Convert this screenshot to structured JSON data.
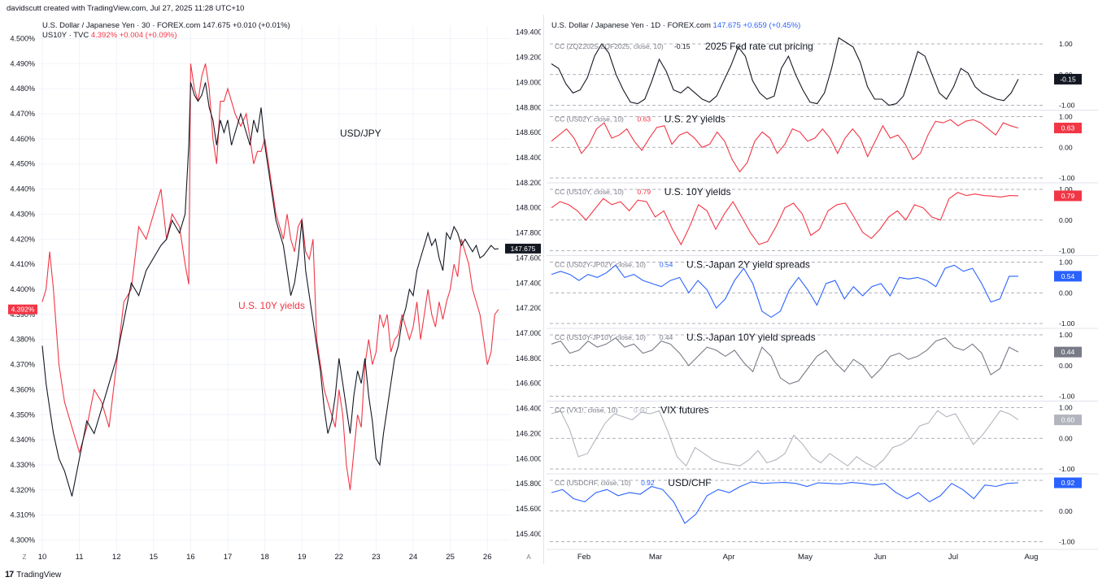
{
  "header": {
    "credit": "davidscutt created with TradingView.com, Jul 27, 2025 11:28 UTC+10"
  },
  "footer": {
    "logo": "17",
    "brand": "TradingView"
  },
  "colors": {
    "red": "#f23645",
    "black": "#131722",
    "blue": "#2962ff",
    "gray": "#787b86",
    "light_gray": "#b2b5be"
  },
  "left": {
    "legend1": {
      "name": "U.S. Dollar / Japanese Yen · 30 · FOREX.com",
      "price": "147.675",
      "change": "+0.010 (+0.01%)"
    },
    "legend2": {
      "name": "US10Y · TVC",
      "value": "4.392%",
      "change": "+0.004 (+0.09%)"
    },
    "annotation_usdjpy": "USD/JPY",
    "annotation_us10y": "U.S. 10Y yields",
    "label_left_marker": "4.392%",
    "label_right_marker": "147.675",
    "axis_corner_left": "Z",
    "axis_corner_right": "A"
  },
  "right": {
    "legend": {
      "name": "U.S. Dollar / Japanese Yen · 1D · FOREX.com",
      "price": "147.675",
      "change": "+0.659 (+0.45%)"
    },
    "month_labels": [
      "Feb",
      "Mar",
      "Apr",
      "May",
      "Jun",
      "Jul",
      "Aug"
    ],
    "pane_ticks": [
      "1.00",
      "0.00",
      "-1.00"
    ],
    "pane_tick_values": [
      1,
      0,
      -1
    ],
    "panes": [
      {
        "legend": "CC (ZQZ2025-ZQF2025, close, 10)",
        "legend_value": "-0.15",
        "title": "2025 Fed rate cut pricing",
        "badge": "-0.15",
        "color": "#131722",
        "values": [
          0.35,
          0.2,
          -0.3,
          -0.6,
          -0.5,
          -0.1,
          0.6,
          1.0,
          0.7,
          0.0,
          -0.5,
          -0.9,
          -0.95,
          -0.8,
          -0.2,
          0.5,
          0.1,
          -0.5,
          -0.6,
          -0.4,
          -0.6,
          -0.8,
          -0.9,
          -0.7,
          -0.2,
          0.3,
          0.9,
          0.6,
          -0.2,
          -0.6,
          -0.8,
          -0.7,
          0.2,
          0.6,
          0.0,
          -0.5,
          -0.9,
          -0.95,
          -0.6,
          0.2,
          1.2,
          1.05,
          0.9,
          0.4,
          -0.4,
          -0.8,
          -0.8,
          -1.0,
          -0.95,
          -0.7,
          0.0,
          0.75,
          0.6,
          0.0,
          -0.6,
          -0.8,
          -0.4,
          0.2,
          0.05,
          -0.4,
          -0.6,
          -0.7,
          -0.8,
          -0.85,
          -0.6,
          -0.15
        ]
      },
      {
        "legend": "CC (US02Y, close, 10)",
        "legend_value": "0.63",
        "title": "U.S. 2Y yields",
        "badge": "0.63",
        "color": "#f23645",
        "values": [
          0.2,
          0.4,
          0.6,
          0.3,
          -0.2,
          0.1,
          0.6,
          0.8,
          0.3,
          0.4,
          0.6,
          0.2,
          -0.1,
          0.3,
          0.65,
          0.7,
          0.1,
          0.4,
          0.5,
          0.3,
          0.0,
          0.1,
          0.5,
          0.2,
          -0.4,
          -0.8,
          -0.5,
          0.2,
          0.5,
          0.3,
          -0.2,
          0.1,
          0.6,
          0.5,
          0.2,
          0.3,
          0.6,
          0.3,
          -0.2,
          0.3,
          0.6,
          0.3,
          -0.3,
          0.2,
          0.7,
          0.3,
          0.4,
          0.1,
          -0.4,
          -0.2,
          0.4,
          0.85,
          0.8,
          0.9,
          0.7,
          0.85,
          0.9,
          0.8,
          0.6,
          0.4,
          0.8,
          0.7,
          0.63
        ]
      },
      {
        "legend": "CC (US10Y, close, 10)",
        "legend_value": "0.79",
        "title": "U.S. 10Y yields",
        "badge": "0.79",
        "color": "#f23645",
        "values": [
          0.4,
          0.6,
          0.5,
          0.3,
          0.0,
          0.35,
          0.7,
          0.5,
          0.6,
          0.3,
          0.65,
          0.6,
          0.1,
          0.3,
          -0.3,
          -0.8,
          -0.2,
          0.5,
          0.3,
          -0.3,
          0.2,
          0.6,
          0.1,
          -0.4,
          -0.8,
          -0.7,
          -0.2,
          0.4,
          0.55,
          0.2,
          -0.5,
          -0.3,
          0.3,
          0.5,
          0.55,
          0.1,
          -0.4,
          -0.6,
          -0.3,
          0.1,
          0.3,
          0.0,
          0.5,
          0.4,
          0.1,
          0.0,
          0.7,
          0.9,
          0.8,
          0.85,
          0.8,
          0.78,
          0.75,
          0.8,
          0.79
        ]
      },
      {
        "legend": "CC (US02Y-JP02Y, close, 10)",
        "legend_value": "0.54",
        "title": "U.S.-Japan 2Y yield spreads",
        "badge": "0.54",
        "color": "#2962ff",
        "values": [
          0.6,
          0.7,
          0.6,
          0.4,
          0.6,
          0.5,
          0.65,
          0.9,
          0.5,
          0.6,
          0.4,
          0.3,
          0.2,
          0.4,
          0.5,
          0.0,
          0.4,
          0.1,
          -0.5,
          -0.2,
          0.4,
          0.8,
          0.3,
          -0.6,
          -0.8,
          -0.6,
          0.1,
          0.5,
          0.1,
          -0.4,
          0.3,
          0.4,
          -0.2,
          0.2,
          -0.1,
          0.2,
          0.3,
          -0.1,
          0.5,
          0.45,
          0.5,
          0.4,
          0.2,
          0.8,
          0.9,
          0.7,
          0.8,
          0.3,
          -0.3,
          -0.2,
          0.54,
          0.54
        ]
      },
      {
        "legend": "CC (US10Y-JP10Y, close, 10)",
        "legend_value": "0.44",
        "title": "U.S.-Japan 10Y yield spreads",
        "badge": "0.44",
        "color": "#787b86",
        "values": [
          0.7,
          0.8,
          0.4,
          0.5,
          0.8,
          0.6,
          0.7,
          0.9,
          0.6,
          0.7,
          0.4,
          0.5,
          0.8,
          0.7,
          0.4,
          0.0,
          0.3,
          0.6,
          0.5,
          0.3,
          0.5,
          0.1,
          -0.2,
          0.6,
          0.3,
          -0.4,
          -0.6,
          -0.5,
          -0.1,
          0.3,
          0.5,
          0.1,
          -0.2,
          0.2,
          0.0,
          -0.4,
          -0.1,
          0.3,
          0.4,
          0.2,
          0.3,
          0.5,
          0.8,
          0.9,
          0.6,
          0.5,
          0.7,
          0.4,
          -0.3,
          -0.1,
          0.6,
          0.44
        ]
      },
      {
        "legend": "CC (VX1!, close, 10)",
        "legend_value": "0.60",
        "title": "VIX futures",
        "badge": "0.60",
        "color": "#b2b5be",
        "values": [
          0.8,
          0.9,
          0.3,
          -0.6,
          -0.5,
          0.0,
          0.5,
          0.8,
          0.7,
          0.6,
          0.85,
          0.8,
          0.9,
          0.2,
          -0.6,
          -0.9,
          -0.3,
          -0.5,
          -0.7,
          -0.8,
          -0.85,
          -0.9,
          -0.7,
          -0.4,
          -0.8,
          -0.7,
          -0.5,
          0.1,
          -0.2,
          -0.6,
          -0.8,
          -0.5,
          -0.7,
          -0.9,
          -0.6,
          -0.8,
          -0.95,
          -0.7,
          -0.3,
          -0.2,
          0.0,
          0.4,
          0.5,
          0.9,
          0.7,
          0.8,
          0.3,
          -0.2,
          0.1,
          0.5,
          0.9,
          0.8,
          0.6
        ]
      },
      {
        "legend": "CC (USDCHF, close, 10)",
        "legend_value": "0.92",
        "title": "USD/CHF",
        "badge": "0.92",
        "color": "#2962ff",
        "values": [
          0.6,
          0.7,
          0.4,
          0.3,
          0.6,
          0.7,
          0.5,
          0.6,
          0.55,
          0.8,
          0.7,
          0.3,
          -0.4,
          -0.1,
          0.5,
          0.7,
          0.6,
          0.8,
          0.95,
          0.9,
          0.92,
          0.93,
          0.9,
          0.8,
          0.92,
          0.9,
          0.88,
          0.93,
          0.9,
          0.85,
          0.9,
          0.6,
          0.4,
          0.6,
          0.3,
          0.5,
          0.9,
          0.7,
          0.4,
          0.85,
          0.8,
          0.9,
          0.92
        ]
      }
    ]
  },
  "chart_data": [
    {
      "type": "line",
      "title": "",
      "x_tick_labels": [
        "10",
        "11",
        "12",
        "15",
        "16",
        "17",
        "18",
        "19",
        "22",
        "23",
        "24",
        "25",
        "26"
      ],
      "left_axis": {
        "label": "",
        "ylim": [
          4.295,
          4.505
        ],
        "ticks": [
          "4.500%",
          "4.490%",
          "4.480%",
          "4.470%",
          "4.460%",
          "4.450%",
          "4.440%",
          "4.430%",
          "4.420%",
          "4.410%",
          "4.400%",
          "4.390%",
          "4.380%",
          "4.370%",
          "4.360%",
          "4.350%",
          "4.340%",
          "4.330%",
          "4.320%",
          "4.310%",
          "4.300%"
        ]
      },
      "right_axis": {
        "label": "",
        "ylim": [
          145.25,
          149.45
        ],
        "ticks": [
          "149.400",
          "149.200",
          "149.000",
          "148.800",
          "148.600",
          "148.400",
          "148.200",
          "148.000",
          "147.800",
          "147.600",
          "147.400",
          "147.200",
          "147.000",
          "146.800",
          "146.600",
          "146.400",
          "146.200",
          "146.000",
          "145.800",
          "145.600",
          "145.400"
        ]
      },
      "series": [
        {
          "name": "US10Y",
          "axis": "left",
          "color": "#f23645",
          "x": [
            0,
            0.1,
            0.2,
            0.3,
            0.45,
            0.6,
            0.8,
            1.0,
            1.2,
            1.4,
            1.6,
            1.8,
            2.0,
            2.2,
            2.4,
            2.6,
            2.8,
            3.0,
            3.2,
            3.35,
            3.5,
            3.7,
            3.85,
            3.95,
            4.0,
            4.1,
            4.2,
            4.3,
            4.4,
            4.5,
            4.6,
            4.7,
            4.8,
            4.9,
            5.0,
            5.1,
            5.2,
            5.35,
            5.5,
            5.6,
            5.7,
            5.8,
            5.9,
            6.0,
            6.1,
            6.2,
            6.3,
            6.4,
            6.5,
            6.6,
            6.7,
            6.8,
            6.9,
            7.0,
            7.1,
            7.2,
            7.3,
            7.4,
            7.5,
            7.6,
            7.7,
            7.8,
            7.9,
            8.0,
            8.1,
            8.2,
            8.3,
            8.4,
            8.5,
            8.6,
            8.7,
            8.8,
            8.9,
            9.0,
            9.1,
            9.2,
            9.3,
            9.4,
            9.5,
            9.6,
            9.7,
            9.8,
            9.9,
            10.0,
            10.1,
            10.2,
            10.3,
            10.4,
            10.5,
            10.6,
            10.7,
            10.8,
            10.9,
            11.0,
            11.1,
            11.2,
            11.3,
            11.4,
            11.5,
            11.6,
            11.7,
            11.8,
            11.9,
            12.0,
            12.1,
            12.2,
            12.3
          ],
          "y": [
            4.395,
            4.4,
            4.415,
            4.4,
            4.37,
            4.355,
            4.345,
            4.335,
            4.345,
            4.36,
            4.355,
            4.345,
            4.37,
            4.395,
            4.4,
            4.425,
            4.42,
            4.43,
            4.44,
            4.42,
            4.43,
            4.425,
            4.41,
            4.402,
            4.49,
            4.48,
            4.475,
            4.485,
            4.49,
            4.48,
            4.46,
            4.45,
            4.475,
            4.475,
            4.48,
            4.475,
            4.47,
            4.465,
            4.47,
            4.46,
            4.45,
            4.455,
            4.455,
            4.46,
            4.45,
            4.44,
            4.43,
            4.425,
            4.42,
            4.43,
            4.42,
            4.415,
            4.425,
            4.428,
            4.415,
            4.412,
            4.42,
            4.38,
            4.37,
            4.36,
            4.355,
            4.35,
            4.345,
            4.36,
            4.35,
            4.33,
            4.32,
            4.335,
            4.35,
            4.345,
            4.37,
            4.38,
            4.37,
            4.375,
            4.39,
            4.385,
            4.39,
            4.375,
            4.38,
            4.382,
            4.39,
            4.385,
            4.38,
            4.385,
            4.395,
            4.38,
            4.39,
            4.4,
            4.39,
            4.385,
            4.395,
            4.388,
            4.395,
            4.4,
            4.41,
            4.405,
            4.42,
            4.415,
            4.41,
            4.4,
            4.395,
            4.39,
            4.38,
            4.37,
            4.375,
            4.39,
            4.392
          ]
        },
        {
          "name": "USD/JPY",
          "axis": "right",
          "color": "#131722",
          "x": [
            0,
            0.1,
            0.2,
            0.3,
            0.45,
            0.6,
            0.8,
            1.0,
            1.2,
            1.4,
            1.6,
            1.8,
            2.0,
            2.2,
            2.4,
            2.6,
            2.8,
            3.0,
            3.2,
            3.35,
            3.5,
            3.7,
            3.85,
            3.95,
            4.0,
            4.1,
            4.2,
            4.3,
            4.4,
            4.5,
            4.6,
            4.7,
            4.8,
            4.9,
            5.0,
            5.1,
            5.2,
            5.35,
            5.5,
            5.6,
            5.7,
            5.8,
            5.9,
            6.0,
            6.1,
            6.2,
            6.3,
            6.4,
            6.5,
            6.6,
            6.7,
            6.8,
            6.9,
            7.0,
            7.1,
            7.2,
            7.3,
            7.4,
            7.5,
            7.6,
            7.7,
            7.8,
            7.9,
            8.0,
            8.1,
            8.2,
            8.3,
            8.4,
            8.5,
            8.6,
            8.7,
            8.8,
            8.9,
            9.0,
            9.1,
            9.2,
            9.3,
            9.4,
            9.5,
            9.6,
            9.7,
            9.8,
            9.9,
            10.0,
            10.1,
            10.2,
            10.3,
            10.4,
            10.5,
            10.6,
            10.7,
            10.8,
            10.9,
            11.0,
            11.1,
            11.2,
            11.3,
            11.4,
            11.5,
            11.6,
            11.7,
            11.8,
            11.9,
            12.0,
            12.1,
            12.2,
            12.3
          ],
          "y": [
            146.9,
            146.6,
            146.4,
            146.2,
            146.0,
            145.9,
            145.7,
            146.0,
            146.3,
            146.2,
            146.4,
            146.6,
            146.8,
            147.1,
            147.4,
            147.3,
            147.5,
            147.6,
            147.7,
            147.75,
            147.9,
            147.8,
            147.95,
            148.5,
            149.0,
            148.9,
            148.85,
            148.9,
            149.0,
            148.8,
            148.7,
            148.5,
            148.7,
            148.6,
            148.7,
            148.5,
            148.6,
            148.75,
            148.6,
            148.5,
            148.7,
            148.6,
            148.8,
            148.5,
            148.3,
            148.1,
            147.9,
            147.8,
            147.7,
            147.5,
            147.3,
            147.4,
            147.6,
            147.9,
            147.5,
            147.3,
            147.1,
            146.9,
            146.7,
            146.4,
            146.2,
            146.3,
            146.5,
            146.8,
            146.6,
            146.4,
            146.2,
            146.5,
            146.7,
            146.6,
            146.8,
            146.5,
            146.3,
            146.0,
            145.95,
            146.2,
            146.4,
            146.6,
            146.8,
            146.9,
            147.1,
            147.2,
            147.35,
            147.3,
            147.5,
            147.6,
            147.7,
            147.8,
            147.7,
            147.75,
            147.6,
            147.5,
            147.8,
            147.75,
            147.85,
            147.8,
            147.7,
            147.75,
            147.7,
            147.65,
            147.7,
            147.6,
            147.62,
            147.66,
            147.7,
            147.67,
            147.675
          ]
        }
      ],
      "annotations": [
        "USD/JPY",
        "U.S. 10Y yields"
      ]
    },
    {
      "type": "line",
      "title": "U.S. Dollar / Japanese Yen · 1D · FOREX.com",
      "x_tick_labels": [
        "Feb",
        "Mar",
        "Apr",
        "May",
        "Jun",
        "Jul",
        "Aug"
      ],
      "series": [
        {
          "name": "2025 Fed rate cut pricing"
        },
        {
          "name": "U.S. 2Y yields"
        },
        {
          "name": "U.S. 10Y yields"
        },
        {
          "name": "U.S.-Japan 2Y yield spreads"
        },
        {
          "name": "U.S.-Japan 10Y yield spreads"
        },
        {
          "name": "VIX futures"
        },
        {
          "name": "USD/CHF"
        }
      ],
      "ylim": [
        -1.0,
        1.0
      ],
      "grid": true
    }
  ]
}
